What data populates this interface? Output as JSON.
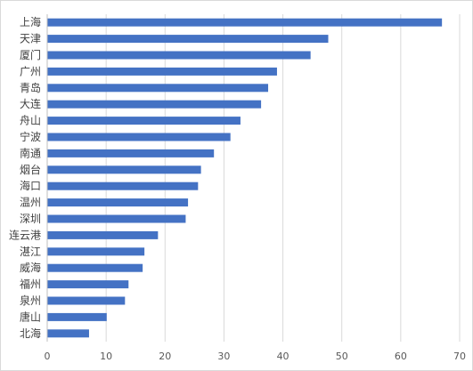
{
  "chart_data": {
    "type": "bar",
    "orientation": "horizontal",
    "categories": [
      "上海",
      "天津",
      "厦门",
      "广州",
      "青岛",
      "大连",
      "舟山",
      "宁波",
      "南通",
      "烟台",
      "海口",
      "温州",
      "深圳",
      "连云港",
      "湛江",
      "威海",
      "福州",
      "泉州",
      "唐山",
      "北海"
    ],
    "values": [
      67,
      47.7,
      44.7,
      39,
      37.5,
      36.3,
      32.8,
      31.1,
      28.3,
      26.1,
      25.6,
      23.9,
      23.5,
      18.8,
      16.5,
      16.2,
      13.8,
      13.2,
      10.1,
      7.1
    ],
    "xlim": [
      0,
      70
    ],
    "xticks": [
      0,
      10,
      20,
      30,
      40,
      50,
      60,
      70
    ],
    "grid": true,
    "title": "",
    "xlabel": "",
    "ylabel": "",
    "colors": {
      "bar": "#4472C4",
      "grid": "#d9d9d9",
      "axis": "#bfbfbf"
    }
  }
}
